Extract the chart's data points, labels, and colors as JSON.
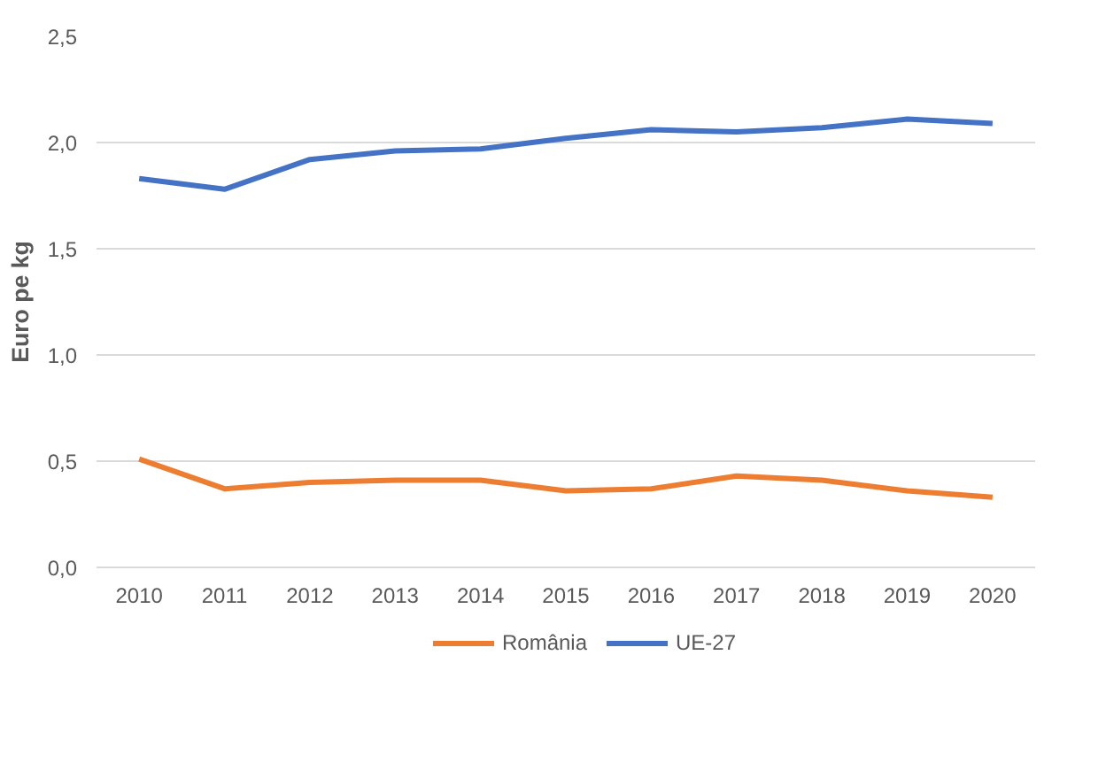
{
  "chart_data": {
    "type": "line",
    "ylabel": "Euro pe kg",
    "categories": [
      "2010",
      "2011",
      "2012",
      "2013",
      "2014",
      "2015",
      "2016",
      "2017",
      "2018",
      "2019",
      "2020"
    ],
    "series": [
      {
        "name": "România",
        "color": "#ed7d31",
        "values": [
          0.51,
          0.37,
          0.4,
          0.41,
          0.41,
          0.36,
          0.37,
          0.43,
          0.41,
          0.36,
          0.33
        ]
      },
      {
        "name": "UE-27",
        "color": "#4472c4",
        "values": [
          1.83,
          1.78,
          1.92,
          1.96,
          1.97,
          2.02,
          2.06,
          2.05,
          2.07,
          2.11,
          2.09
        ]
      }
    ],
    "ylim": [
      0,
      2.5
    ],
    "yticks": [
      {
        "value": 0,
        "label": "0,0"
      },
      {
        "value": 0.5,
        "label": "0,5"
      },
      {
        "value": 1,
        "label": "1,0"
      },
      {
        "value": 1.5,
        "label": "1,5"
      },
      {
        "value": 2,
        "label": "2,0"
      },
      {
        "value": 2.5,
        "label": "2,5"
      }
    ],
    "grid": "y",
    "legend": "bottom",
    "marker": "none",
    "line_style": "solid"
  }
}
